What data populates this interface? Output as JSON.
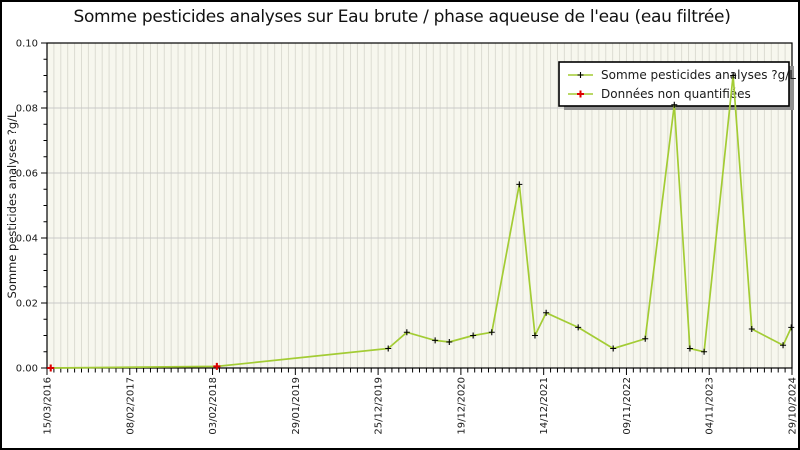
{
  "title": "Somme pesticides analyses sur Eau brute / phase aqueuse de l'eau (eau filtrée)",
  "chart_data": {
    "type": "line",
    "title": "Somme pesticides analyses sur Eau brute / phase aqueuse de l'eau (eau filtrée)",
    "xlabel": "",
    "ylabel": "Somme pesticides analyses ?g/L",
    "ylim": [
      0.0,
      0.1
    ],
    "y_tick_labels": [
      "0.00",
      "0.02",
      "0.04",
      "0.06",
      "0.08",
      "0.10"
    ],
    "y_minor_per_major": 4,
    "x_tick_labels": [
      "15/03/2016",
      "08/02/2017",
      "03/02/2018",
      "29/01/2019",
      "25/12/2019",
      "19/12/2020",
      "14/12/2021",
      "09/11/2022",
      "04/11/2023",
      "29/10/2024"
    ],
    "x_minor_per_major": 12,
    "grid": true,
    "legend_position": "top-right",
    "legend": [
      {
        "label": "Somme pesticides analyses ?g/L",
        "marker": "black-plus-icon"
      },
      {
        "label": "Données non quantifiées",
        "marker": "red-plus-icon"
      }
    ],
    "series": [
      {
        "name": "Somme pesticides analyses ?g/L",
        "color": "#a3cc34",
        "points": [
          {
            "x": 0.005,
            "value": 0.0,
            "non_quantified": true
          },
          {
            "x": 0.228,
            "value": 0.0005,
            "non_quantified": true
          },
          {
            "x": 0.458,
            "value": 0.006
          },
          {
            "x": 0.483,
            "value": 0.011
          },
          {
            "x": 0.521,
            "value": 0.0085
          },
          {
            "x": 0.54,
            "value": 0.008
          },
          {
            "x": 0.572,
            "value": 0.01
          },
          {
            "x": 0.597,
            "value": 0.011
          },
          {
            "x": 0.634,
            "value": 0.0565
          },
          {
            "x": 0.655,
            "value": 0.01
          },
          {
            "x": 0.67,
            "value": 0.017
          },
          {
            "x": 0.713,
            "value": 0.0125
          },
          {
            "x": 0.76,
            "value": 0.006
          },
          {
            "x": 0.803,
            "value": 0.009
          },
          {
            "x": 0.842,
            "value": 0.081
          },
          {
            "x": 0.863,
            "value": 0.006
          },
          {
            "x": 0.882,
            "value": 0.005
          },
          {
            "x": 0.921,
            "value": 0.09
          },
          {
            "x": 0.946,
            "value": 0.012
          },
          {
            "x": 0.988,
            "value": 0.007
          },
          {
            "x": 0.999,
            "value": 0.0125
          }
        ]
      }
    ],
    "colors": {
      "line": "#a3cc34",
      "marker": "#000000",
      "non_quantified": "#dd0000",
      "plot_bg": "#f7f7ee",
      "v_grid": "#dcdcd2",
      "h_grid": "#c8c8c8",
      "axis": "#000000",
      "legend_bg": "#ffffff",
      "legend_shadow": "#909090",
      "text": "#1a1a1a"
    }
  }
}
